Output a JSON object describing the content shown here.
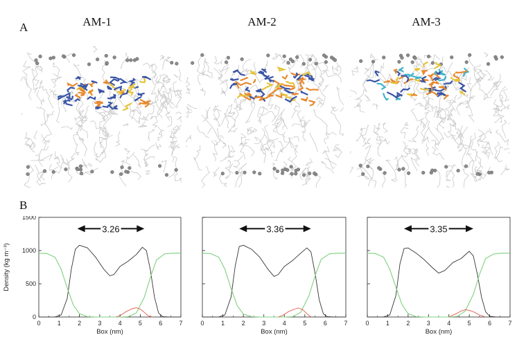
{
  "figure": {
    "panel_a_label": "A",
    "panel_b_label": "B",
    "snapshots": [
      {
        "title": "AM-1"
      },
      {
        "title": "AM-2"
      },
      {
        "title": "AM-3"
      }
    ]
  },
  "colors": {
    "lipid": "#c8c8c8",
    "headgroup": "#8a8a8a",
    "peptide_blue": "#3a55a6",
    "peptide_orange": "#e8892e",
    "peptide_yellow": "#e6c43a",
    "peptide_cyan": "#3fb3c9",
    "total_density": "#333333",
    "water_density": "#7fd07f",
    "peptide_density": "#e05a4a"
  },
  "chart_data": [
    {
      "type": "line",
      "xlabel": "Box (nm)",
      "ylabel": "Density (kg m⁻³)",
      "xlim": [
        0,
        7
      ],
      "ylim": [
        0,
        1500
      ],
      "xticks": [
        "0",
        "1",
        "2",
        "3",
        "4",
        "5",
        "6",
        "7"
      ],
      "yticks": [
        "0",
        "500",
        "1000",
        "1500"
      ],
      "annotation": "3.26",
      "arrow_x": [
        1.9,
        5.2
      ],
      "arrow_y": 1330,
      "series": [
        {
          "role": "total",
          "x": [
            0,
            0.3,
            0.8,
            1.1,
            1.4,
            1.6,
            1.8,
            2.0,
            2.4,
            2.8,
            3.2,
            3.5,
            3.7,
            4.0,
            4.4,
            4.8,
            5.1,
            5.3,
            5.5,
            5.7,
            5.9,
            6.1,
            6.4,
            7
          ],
          "y": [
            0,
            0,
            2,
            30,
            280,
            720,
            1020,
            1080,
            1040,
            900,
            720,
            620,
            640,
            760,
            840,
            940,
            1050,
            1000,
            700,
            300,
            60,
            5,
            0,
            0
          ]
        },
        {
          "role": "water",
          "x": [
            0,
            0.4,
            0.8,
            1.1,
            1.4,
            1.7,
            2.0,
            2.4,
            2.8,
            3.2,
            3.6,
            4.0,
            4.4,
            4.8,
            5.2,
            5.5,
            5.8,
            6.2,
            6.6,
            7
          ],
          "y": [
            960,
            955,
            900,
            720,
            440,
            180,
            50,
            5,
            0,
            0,
            0,
            0,
            5,
            60,
            300,
            600,
            860,
            950,
            960,
            960
          ]
        },
        {
          "role": "peptide",
          "x": [
            3.8,
            4.0,
            4.3,
            4.6,
            4.8,
            5.0,
            5.2,
            5.4,
            5.6
          ],
          "y": [
            0,
            20,
            80,
            125,
            140,
            120,
            70,
            15,
            0
          ]
        }
      ]
    },
    {
      "type": "line",
      "xlabel": "Box (nm)",
      "ylabel": "",
      "xlim": [
        0,
        7
      ],
      "ylim": [
        0,
        1500
      ],
      "xticks": [
        "0",
        "1",
        "2",
        "3",
        "4",
        "5",
        "6",
        "7"
      ],
      "yticks": [],
      "annotation": "3.36",
      "arrow_x": [
        1.8,
        5.3
      ],
      "arrow_y": 1330,
      "series": [
        {
          "role": "total",
          "x": [
            0,
            0.3,
            0.8,
            1.1,
            1.4,
            1.6,
            1.8,
            2.0,
            2.4,
            2.8,
            3.2,
            3.5,
            3.7,
            4.0,
            4.4,
            4.8,
            5.1,
            5.3,
            5.5,
            5.7,
            5.9,
            6.1,
            6.4,
            7
          ],
          "y": [
            0,
            0,
            2,
            30,
            300,
            760,
            1060,
            1080,
            1020,
            900,
            720,
            610,
            640,
            760,
            850,
            960,
            1040,
            980,
            660,
            260,
            50,
            5,
            0,
            0
          ]
        },
        {
          "role": "water",
          "x": [
            0,
            0.4,
            0.8,
            1.1,
            1.4,
            1.7,
            2.0,
            2.4,
            2.8,
            3.2,
            3.6,
            4.0,
            4.4,
            4.8,
            5.2,
            5.5,
            5.8,
            6.2,
            6.6,
            7
          ],
          "y": [
            960,
            955,
            900,
            720,
            430,
            170,
            45,
            5,
            0,
            0,
            0,
            0,
            5,
            70,
            320,
            620,
            870,
            950,
            960,
            960
          ]
        },
        {
          "role": "peptide",
          "x": [
            3.7,
            3.9,
            4.2,
            4.5,
            4.7,
            4.9,
            5.1,
            5.3
          ],
          "y": [
            0,
            20,
            80,
            120,
            135,
            110,
            50,
            0
          ]
        }
      ]
    },
    {
      "type": "line",
      "xlabel": "Box (nm)",
      "ylabel": "",
      "xlim": [
        0,
        7
      ],
      "ylim": [
        0,
        1500
      ],
      "xticks": [
        "0",
        "1",
        "2",
        "3",
        "4",
        "5",
        "6",
        "7"
      ],
      "yticks": [],
      "annotation": "3.35",
      "arrow_x": [
        1.8,
        5.2
      ],
      "arrow_y": 1330,
      "series": [
        {
          "role": "total",
          "x": [
            0,
            0.3,
            0.8,
            1.1,
            1.4,
            1.6,
            1.8,
            2.0,
            2.4,
            2.8,
            3.2,
            3.5,
            3.8,
            4.2,
            4.6,
            5.0,
            5.2,
            5.4,
            5.6,
            5.8,
            6.0,
            6.3,
            7
          ],
          "y": [
            0,
            0,
            2,
            30,
            320,
            800,
            1030,
            1040,
            960,
            860,
            740,
            660,
            700,
            820,
            880,
            990,
            920,
            640,
            300,
            80,
            10,
            0,
            0
          ]
        },
        {
          "role": "water",
          "x": [
            0,
            0.4,
            0.8,
            1.1,
            1.4,
            1.7,
            2.0,
            2.4,
            2.8,
            3.2,
            3.6,
            4.0,
            4.4,
            4.8,
            5.2,
            5.5,
            5.8,
            6.2,
            6.6,
            7
          ],
          "y": [
            960,
            955,
            900,
            720,
            450,
            190,
            50,
            5,
            0,
            0,
            0,
            0,
            8,
            90,
            340,
            640,
            880,
            950,
            960,
            960
          ]
        },
        {
          "role": "peptide",
          "x": [
            4.0,
            4.3,
            4.6,
            4.8,
            5.0,
            5.2,
            5.5,
            5.8
          ],
          "y": [
            0,
            40,
            90,
            110,
            100,
            80,
            30,
            0
          ]
        }
      ]
    }
  ]
}
